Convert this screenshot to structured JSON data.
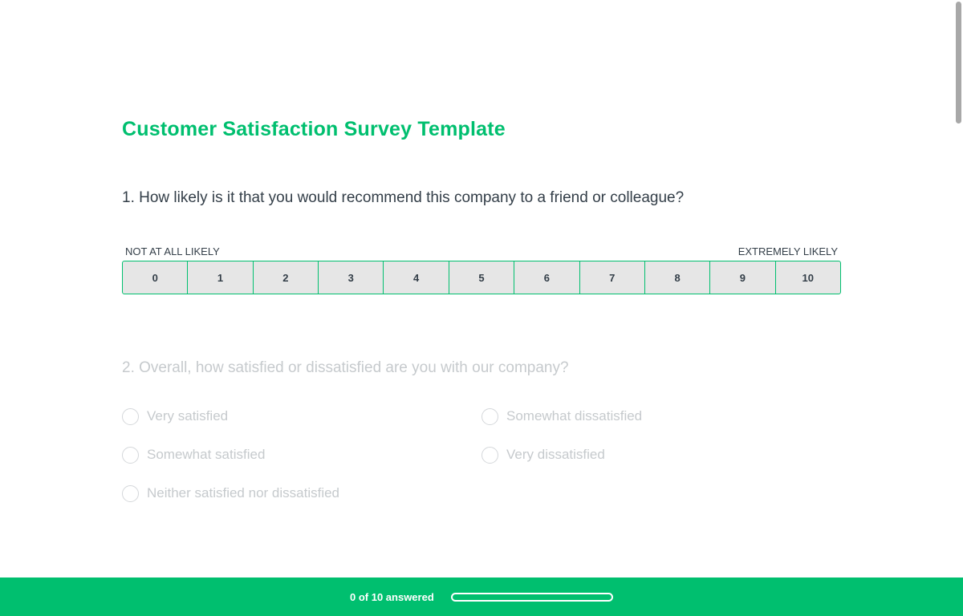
{
  "survey": {
    "title": "Customer Satisfaction Survey Template"
  },
  "question1": {
    "text": "1. How likely is it that you would recommend this company to a friend or colleague?",
    "low_label": "NOT AT ALL LIKELY",
    "high_label": "EXTREMELY LIKELY",
    "options": [
      "0",
      "1",
      "2",
      "3",
      "4",
      "5",
      "6",
      "7",
      "8",
      "9",
      "10"
    ]
  },
  "question2": {
    "text": "2. Overall, how satisfied or dissatisfied are you with our company?",
    "options": [
      "Very satisfied",
      "Somewhat satisfied",
      "Neither satisfied nor dissatisfied",
      "Somewhat dissatisfied",
      "Very dissatisfied"
    ]
  },
  "footer": {
    "progress_text": "0 of 10 answered",
    "progress_fraction": 0
  },
  "colors": {
    "accent": "#00bf6f",
    "text": "#333e48",
    "muted": "#c6cacd",
    "scale_bg": "#e6e6e6"
  }
}
